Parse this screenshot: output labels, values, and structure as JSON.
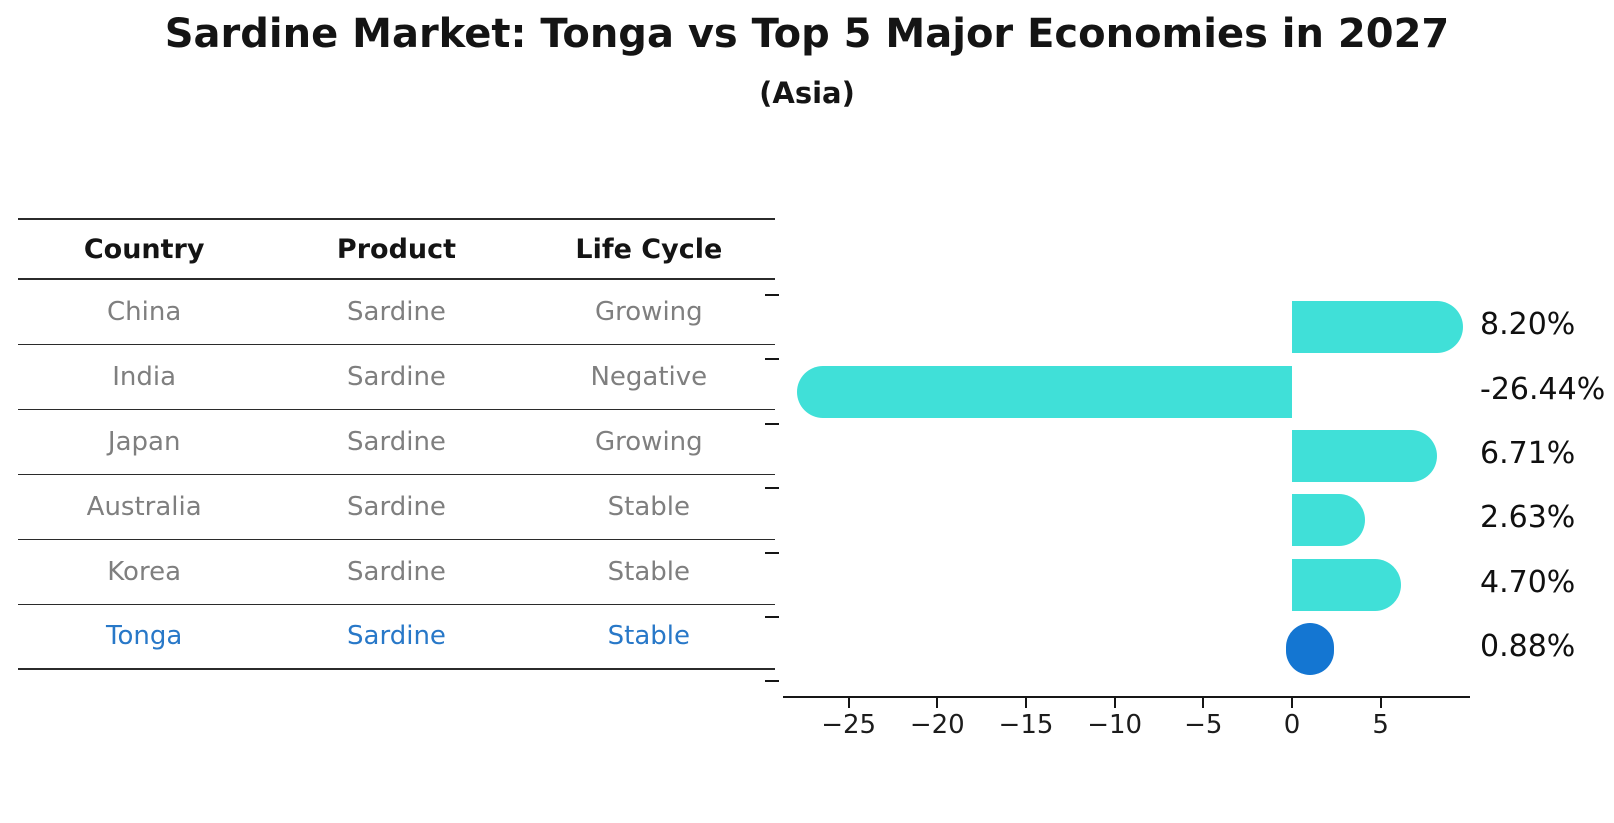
{
  "title": "Sardine Market: Tonga vs Top 5 Major Economies in 2027",
  "subtitle": "(Asia)",
  "table": {
    "headers": [
      "Country",
      "Product",
      "Life Cycle"
    ],
    "rows": [
      {
        "country": "China",
        "product": "Sardine",
        "life_cycle": "Growing",
        "highlighted": false
      },
      {
        "country": "India",
        "product": "Sardine",
        "life_cycle": "Negative",
        "highlighted": false
      },
      {
        "country": "Japan",
        "product": "Sardine",
        "life_cycle": "Growing",
        "highlighted": false
      },
      {
        "country": "Australia",
        "product": "Sardine",
        "life_cycle": "Stable",
        "highlighted": false
      },
      {
        "country": "Korea",
        "product": "Sardine",
        "life_cycle": "Stable",
        "highlighted": false
      },
      {
        "country": "Tonga",
        "product": "Sardine",
        "life_cycle": "Stable",
        "highlighted": true
      }
    ]
  },
  "chart_data": {
    "type": "bar",
    "orientation": "horizontal",
    "title": "Sardine Market: Tonga vs Top 5 Major Economies in 2027 (Asia)",
    "categories": [
      "China",
      "India",
      "Japan",
      "Australia",
      "Korea",
      "Tonga"
    ],
    "values": [
      8.2,
      -26.44,
      6.71,
      2.63,
      4.7,
      0.88
    ],
    "value_labels": [
      "8.20%",
      "-26.44%",
      "6.71%",
      "2.63%",
      "4.70%",
      "0.88%"
    ],
    "xticks": [
      -25,
      -20,
      -15,
      -10,
      -5,
      0,
      5
    ],
    "xtick_labels": [
      "−25",
      "−20",
      "−15",
      "−10",
      "−5",
      "0",
      "5"
    ],
    "xlim": [
      -28.9,
      10.0
    ],
    "grid": false,
    "legend": false,
    "highlight_index": 5,
    "bar_color": "#40E0D8",
    "highlight_color": "#1476D2"
  },
  "colors": {
    "highlight_text": "#2878C8",
    "muted_text": "#7f7f7f",
    "axis": "#161616"
  }
}
